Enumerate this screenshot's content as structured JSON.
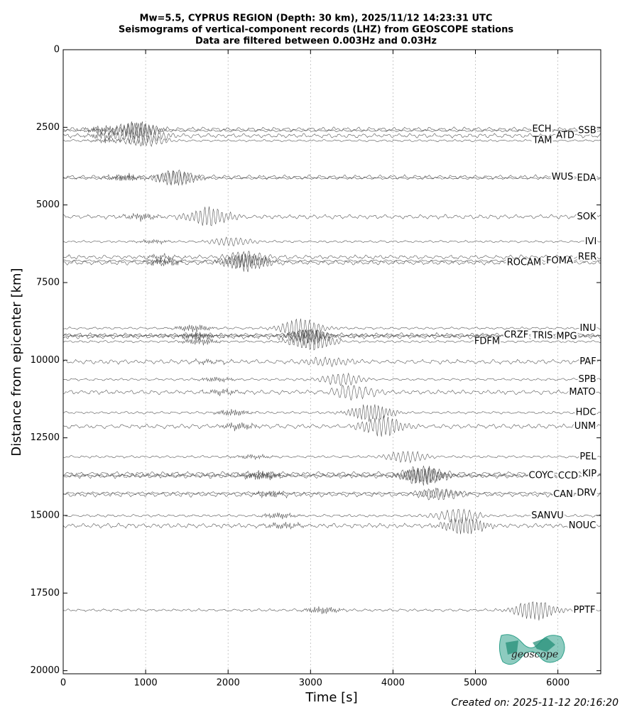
{
  "chart_data": {
    "type": "seismogram",
    "title": [
      "Mw=5.5, CYPRUS REGION (Depth: 30 km), 2025/11/12 14:23:31 UTC",
      "Seismograms of vertical-component records (LHZ) from GEOSCOPE stations",
      "Data are filtered between 0.003Hz and 0.03Hz"
    ],
    "xlabel": "Time [s]",
    "ylabel": "Distance from epicenter [km]",
    "xlim": [
      0,
      6520
    ],
    "ylim": [
      0,
      20100
    ],
    "y_inverted": true,
    "xticks": [
      0,
      1000,
      2000,
      3000,
      4000,
      5000,
      6000
    ],
    "yticks": [
      0,
      2500,
      5000,
      7500,
      10000,
      12500,
      15000,
      17500,
      20000
    ],
    "grid": "x",
    "color": "#555555",
    "stations": [
      {
        "name": "ECH",
        "distance": 2560
      },
      {
        "name": "SSB",
        "distance": 2610
      },
      {
        "name": "ATD",
        "distance": 2770
      },
      {
        "name": "TAM",
        "distance": 2930
      },
      {
        "name": "WUS",
        "distance": 4100
      },
      {
        "name": "EDA",
        "distance": 4140
      },
      {
        "name": "SOK",
        "distance": 5380
      },
      {
        "name": "IVI",
        "distance": 6180
      },
      {
        "name": "RER",
        "distance": 6680
      },
      {
        "name": "FOMA",
        "distance": 6800
      },
      {
        "name": "ROCAM",
        "distance": 6860
      },
      {
        "name": "INU",
        "distance": 8970
      },
      {
        "name": "CRZF",
        "distance": 9190
      },
      {
        "name": "TRIS",
        "distance": 9210
      },
      {
        "name": "MPG",
        "distance": 9240
      },
      {
        "name": "FDFM",
        "distance": 9400
      },
      {
        "name": "PAF",
        "distance": 10050
      },
      {
        "name": "SPB",
        "distance": 10620
      },
      {
        "name": "MATO",
        "distance": 11030
      },
      {
        "name": "HDC",
        "distance": 11690
      },
      {
        "name": "UNM",
        "distance": 12130
      },
      {
        "name": "PEL",
        "distance": 13110
      },
      {
        "name": "KIP",
        "distance": 13660
      },
      {
        "name": "COYC",
        "distance": 13720
      },
      {
        "name": "CCD",
        "distance": 13730
      },
      {
        "name": "DRV",
        "distance": 14280
      },
      {
        "name": "CAN",
        "distance": 14330
      },
      {
        "name": "SANVU",
        "distance": 15010
      },
      {
        "name": "NOUC",
        "distance": 15330
      },
      {
        "name": "PPTF",
        "distance": 18050
      }
    ],
    "logo_text": "geoscope",
    "footer": "Created on: 2025-11-12 20:16:20"
  }
}
